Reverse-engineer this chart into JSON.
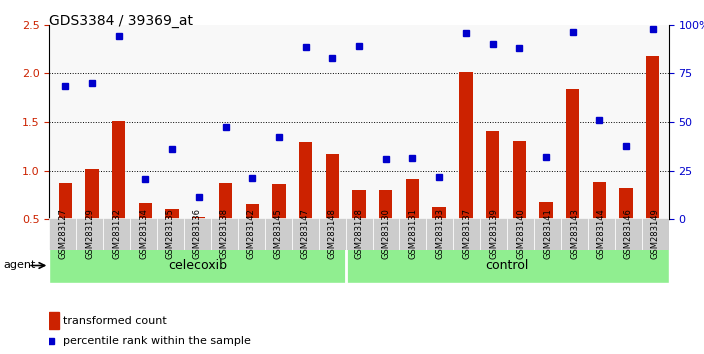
{
  "title": "GDS3384 / 39369_at",
  "samples": [
    "GSM283127",
    "GSM283129",
    "GSM283132",
    "GSM283134",
    "GSM283135",
    "GSM283136",
    "GSM283138",
    "GSM283142",
    "GSM283145",
    "GSM283147",
    "GSM283148",
    "GSM283128",
    "GSM283130",
    "GSM283131",
    "GSM283133",
    "GSM283137",
    "GSM283139",
    "GSM283140",
    "GSM283141",
    "GSM283143",
    "GSM283144",
    "GSM283146",
    "GSM283149"
  ],
  "bar_values": [
    0.87,
    1.02,
    1.51,
    0.67,
    0.61,
    0.53,
    0.87,
    0.66,
    0.86,
    1.3,
    1.17,
    0.8,
    0.8,
    0.92,
    0.63,
    2.01,
    1.41,
    1.31,
    0.68,
    1.84,
    0.88,
    0.82,
    2.18
  ],
  "dot_values": [
    1.87,
    1.9,
    2.38,
    0.92,
    1.22,
    0.73,
    1.45,
    0.93,
    1.35,
    2.27,
    2.16,
    2.28,
    1.12,
    1.13,
    0.94,
    2.42,
    2.3,
    2.26,
    1.14,
    2.43,
    1.52,
    1.25,
    2.46
  ],
  "celecoxib_count": 11,
  "control_count": 12,
  "ylim_left": [
    0.5,
    2.5
  ],
  "yticks_left": [
    0.5,
    1.0,
    1.5,
    2.0,
    2.5
  ],
  "yticks_right": [
    0,
    25,
    50,
    75,
    100
  ],
  "ylabel_left": "",
  "ylabel_right": "",
  "bar_color": "#cc2200",
  "dot_color": "#0000cc",
  "bg_plot": "#ffffff",
  "bg_xticklabels": "#d0d0d0",
  "celecoxib_label": "celecoxib",
  "control_label": "control",
  "agent_label": "agent",
  "legend_bar": "transformed count",
  "legend_dot": "percentile rank within the sample",
  "green_bg": "#90ee90",
  "group_bg": "#b8b8b8"
}
